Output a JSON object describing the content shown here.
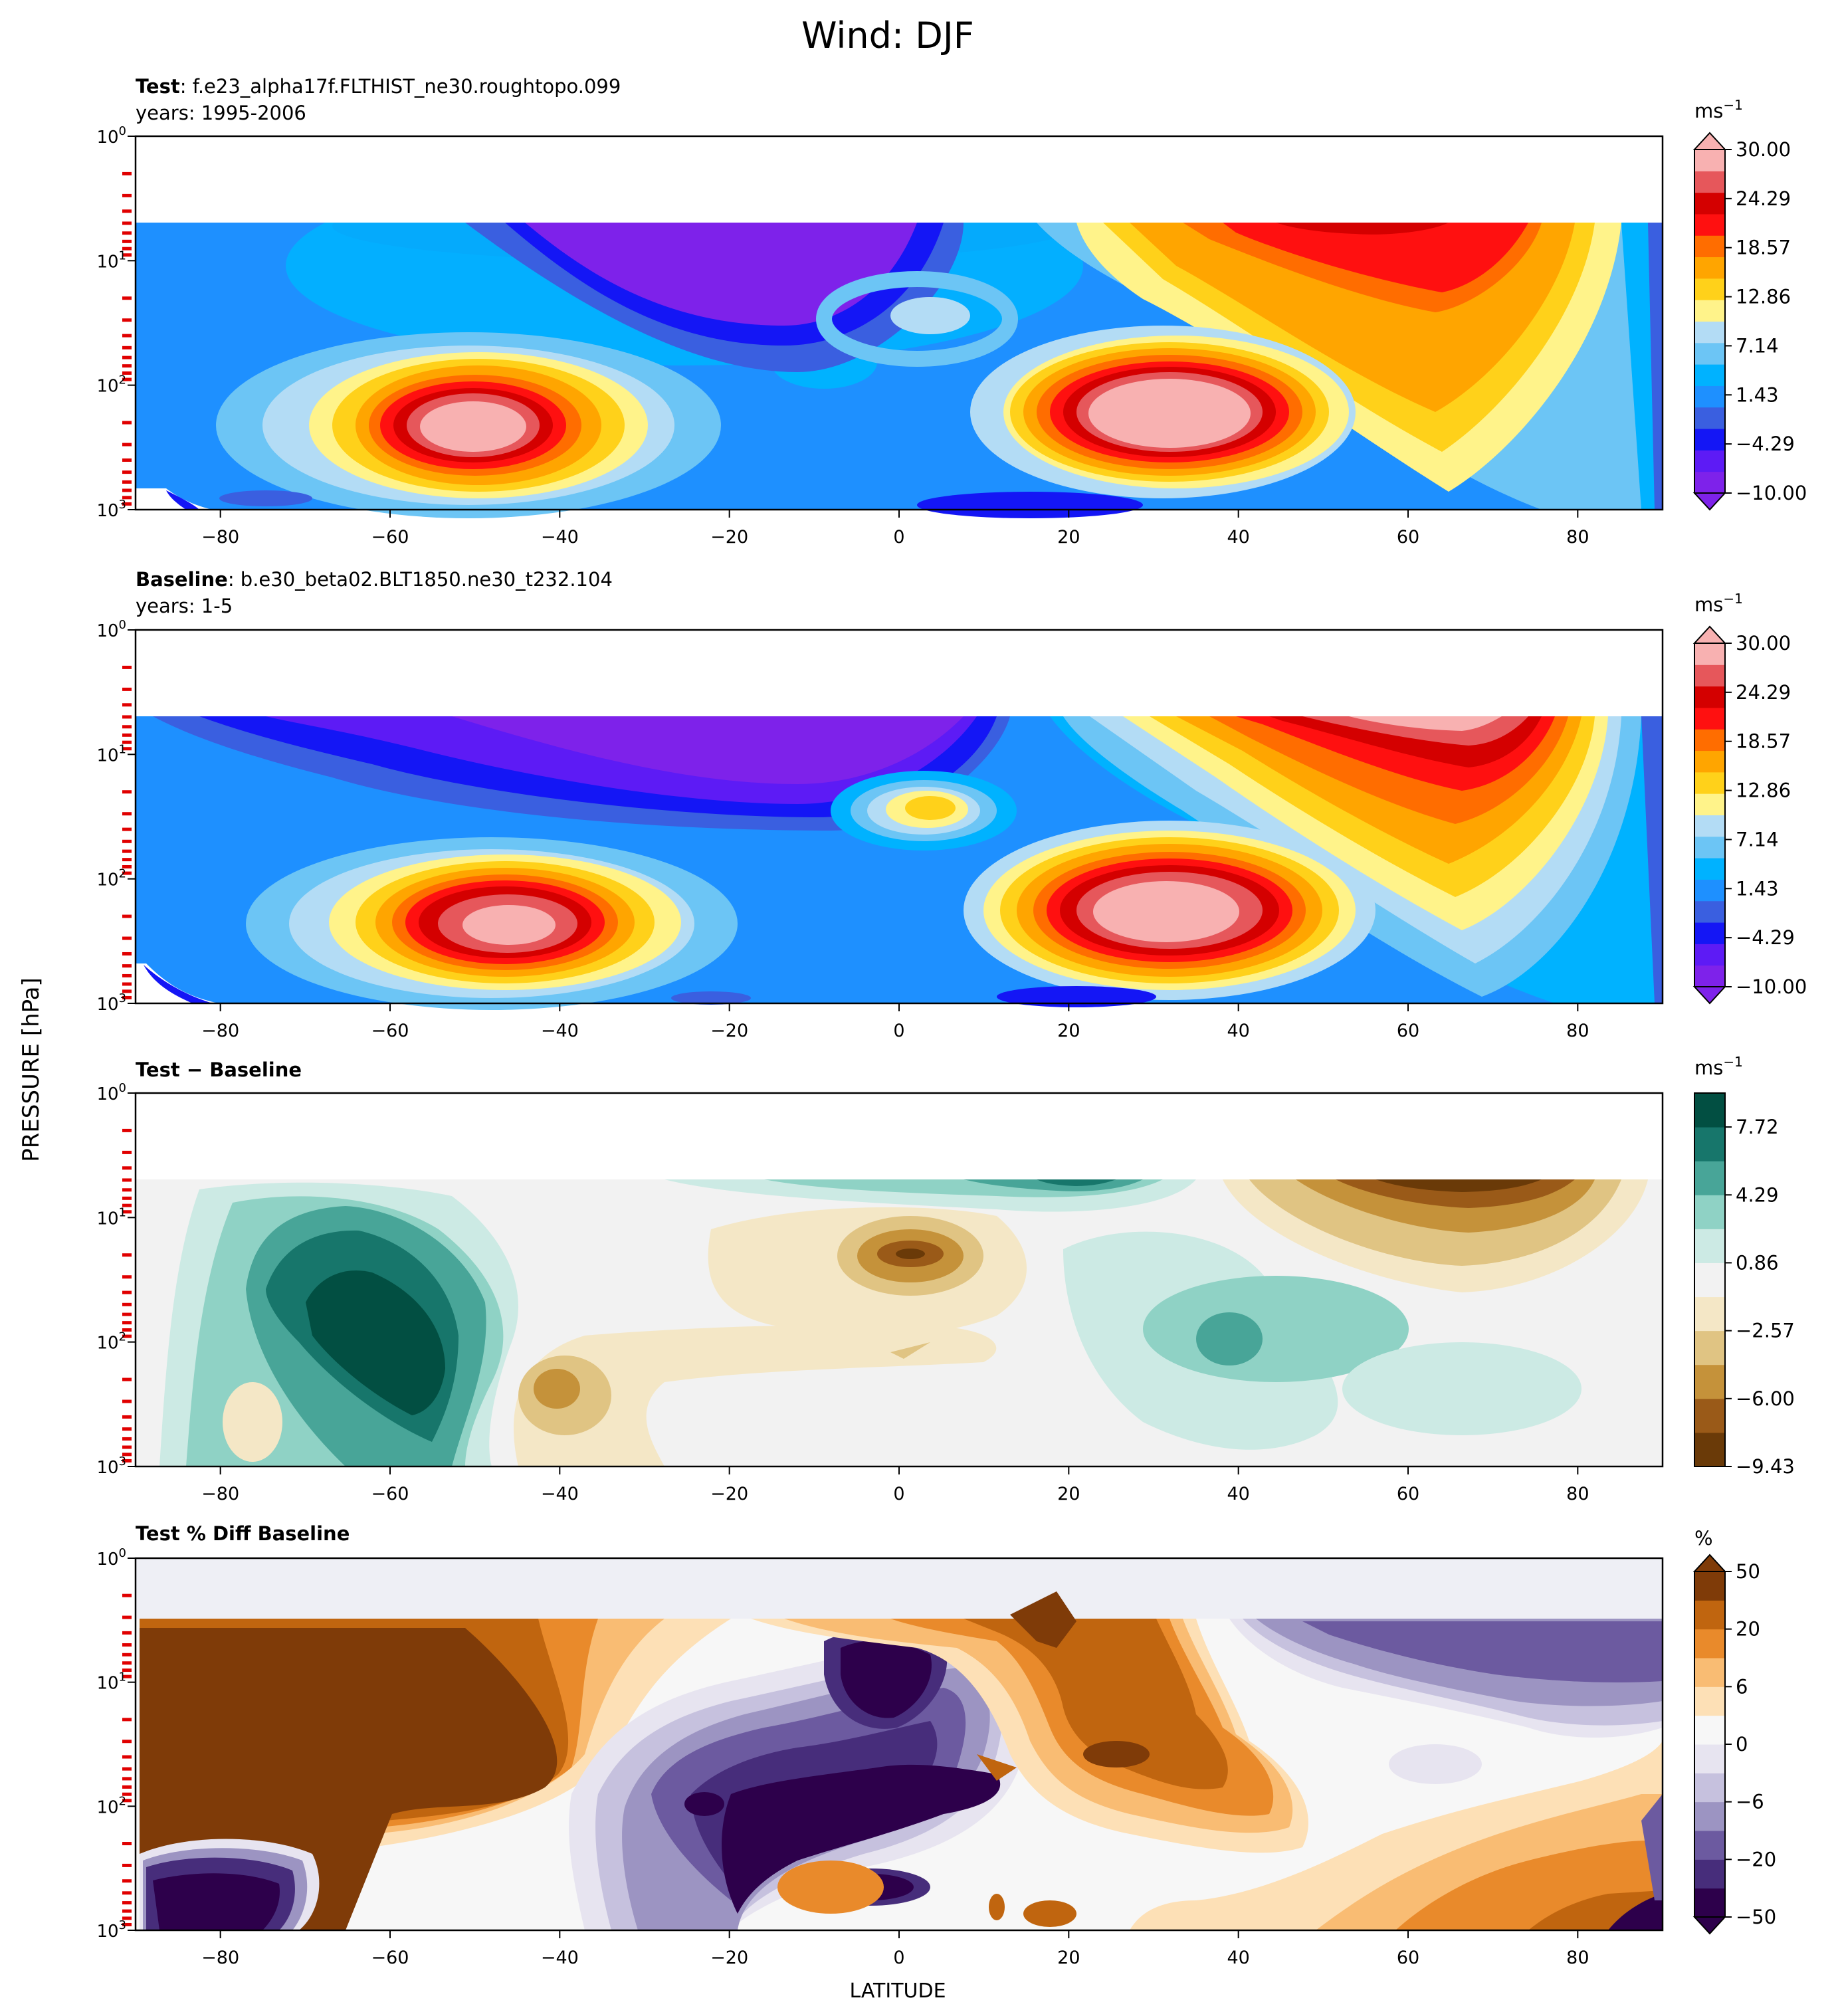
{
  "figure": {
    "title": "Wind: DJF",
    "y_axis_label": "PRESSURE [hPa]",
    "x_axis_label": "LATITUDE"
  },
  "chart_data": [
    {
      "type": "heatmap",
      "panel": "test",
      "title_bold": "Test",
      "title_text": ": f.e23_alpha17f.FLTHIST_ne30.roughtopo.099",
      "subtitle": "years: 1995-2006",
      "colorbar_unit": "ms",
      "colorbar_unit_exp": "−1",
      "colorbar_ticks": [
        "30.00",
        "24.29",
        "18.57",
        "12.86",
        "7.14",
        "1.43",
        "−4.29",
        "−10.00"
      ],
      "colorbar_levels": [
        "#7e22ea",
        "#5d1bf5",
        "#1416f5",
        "#3a5fe0",
        "#1e90ff",
        "#00b2ff",
        "#6cc5f5",
        "#b3dcf5",
        "#fff38a",
        "#ffd11a",
        "#ffa500",
        "#ff6d00",
        "#ff1010",
        "#d40000",
        "#e6575b",
        "#f8b1b1"
      ],
      "xlim": [
        -90,
        90
      ],
      "ylim_hPa": [
        1000,
        1
      ],
      "x_ticks": [
        "−80",
        "−60",
        "−40",
        "−20",
        "0",
        "20",
        "40",
        "60",
        "80"
      ],
      "y_ticks": [
        "10",
        "10",
        "10",
        "10"
      ],
      "y_tick_exps": [
        "0",
        "1",
        "2",
        "3"
      ],
      "features": [
        {
          "lat": -47,
          "p_hPa": 200,
          "value": 30
        },
        {
          "lat": 32,
          "p_hPa": 200,
          "value": 30
        },
        {
          "lat": 62,
          "p_hPa": 8,
          "value": 26
        },
        {
          "lat": -25,
          "p_hPa": 8,
          "value": -10
        }
      ]
    },
    {
      "type": "heatmap",
      "panel": "baseline",
      "title_bold": "Baseline",
      "title_text": ": b.e30_beta02.BLT1850.ne30_t232.104",
      "subtitle": "years: 1-5",
      "colorbar_unit": "ms",
      "colorbar_unit_exp": "−1",
      "colorbar_ticks": [
        "30.00",
        "24.29",
        "18.57",
        "12.86",
        "7.14",
        "1.43",
        "−4.29",
        "−10.00"
      ],
      "colorbar_levels": [
        "#7e22ea",
        "#5d1bf5",
        "#1416f5",
        "#3a5fe0",
        "#1e90ff",
        "#00b2ff",
        "#6cc5f5",
        "#b3dcf5",
        "#fff38a",
        "#ffd11a",
        "#ffa500",
        "#ff6d00",
        "#ff1010",
        "#d40000",
        "#e6575b",
        "#f8b1b1"
      ],
      "xlim": [
        -90,
        90
      ],
      "ylim_hPa": [
        1000,
        1
      ],
      "x_ticks": [
        "−80",
        "−60",
        "−40",
        "−20",
        "0",
        "20",
        "40",
        "60",
        "80"
      ],
      "y_ticks": [
        "10",
        "10",
        "10",
        "10"
      ],
      "y_tick_exps": [
        "0",
        "1",
        "2",
        "3"
      ],
      "features": [
        {
          "lat": -44,
          "p_hPa": 200,
          "value": 30
        },
        {
          "lat": 31,
          "p_hPa": 200,
          "value": 30
        },
        {
          "lat": 68,
          "p_hPa": 6,
          "value": 30
        },
        {
          "lat": 5,
          "p_hPa": 25,
          "value": 14
        }
      ]
    },
    {
      "type": "heatmap",
      "panel": "difference",
      "title_bold": "Test − Baseline",
      "title_text": "",
      "subtitle": "",
      "colorbar_unit": "ms",
      "colorbar_unit_exp": "−1",
      "colorbar_ticks": [
        "7.72",
        "4.29",
        "0.86",
        "−2.57",
        "−6.00",
        "−9.43"
      ],
      "colorbar_levels": [
        "#6a3a08",
        "#9a5a18",
        "#c5923a",
        "#e0c483",
        "#f4e7c6",
        "#f2f2f2",
        "#cceae4",
        "#8fd2c5",
        "#48a598",
        "#17766b",
        "#024f42"
      ],
      "xlim": [
        -90,
        90
      ],
      "ylim_hPa": [
        1000,
        1
      ],
      "x_ticks": [
        "−80",
        "−60",
        "−40",
        "−20",
        "0",
        "20",
        "40",
        "60",
        "80"
      ],
      "y_ticks": [
        "10",
        "10",
        "10",
        "10"
      ],
      "y_tick_exps": [
        "0",
        "1",
        "2",
        "3"
      ],
      "features": [
        {
          "lat": -60,
          "p_hPa": 70,
          "value": 8
        },
        {
          "lat": 2,
          "p_hPa": 20,
          "value": -8
        },
        {
          "lat": 65,
          "p_hPa": 5,
          "value": -7
        },
        {
          "lat": 35,
          "p_hPa": 100,
          "value": 4
        }
      ]
    },
    {
      "type": "heatmap",
      "panel": "percent_difference",
      "title_bold": "Test % Diff Baseline",
      "title_text": "",
      "subtitle": "",
      "colorbar_unit": "%",
      "colorbar_unit_exp": "",
      "colorbar_ticks": [
        "50",
        "20",
        "6",
        "0",
        "−6",
        "−20",
        "−50"
      ],
      "colorbar_levels": [
        "#2d004b",
        "#472d7b",
        "#6c5aa0",
        "#9c94c2",
        "#c6c1de",
        "#e7e4f0",
        "#f7f7f7",
        "#fde0b6",
        "#f9bc73",
        "#e98a2b",
        "#c0650f",
        "#7f3b08"
      ],
      "xlim": [
        -90,
        90
      ],
      "ylim_hPa": [
        1000,
        1
      ],
      "x_ticks": [
        "−80",
        "−60",
        "−40",
        "−20",
        "0",
        "20",
        "40",
        "60",
        "80"
      ],
      "y_ticks": [
        "10",
        "10",
        "10",
        "10"
      ],
      "y_tick_exps": [
        "0",
        "1",
        "2",
        "3"
      ],
      "features": [
        {
          "lat": -60,
          "p_hPa": 30,
          "value": 60
        },
        {
          "lat": -15,
          "p_hPa": 200,
          "value": -60
        },
        {
          "lat": 70,
          "p_hPa": 8,
          "value": -30
        },
        {
          "lat": 20,
          "p_hPa": 30,
          "value": 40
        }
      ]
    }
  ]
}
